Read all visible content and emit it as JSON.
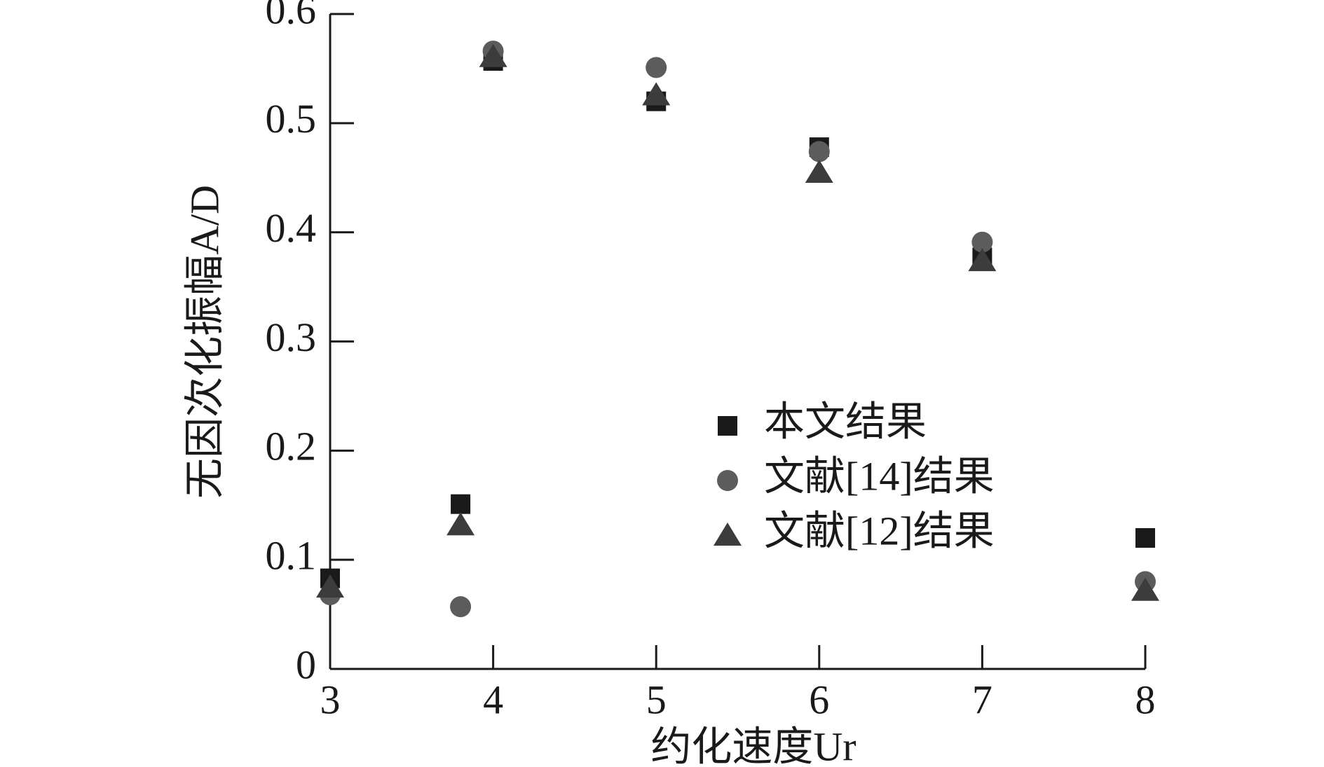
{
  "chart_data": {
    "type": "scatter",
    "xlabel": "约化速度Ur",
    "ylabel": "无因次化振幅A/D",
    "xlim": [
      3,
      8
    ],
    "ylim": [
      0,
      0.6
    ],
    "xticks": [
      3,
      4,
      5,
      6,
      7,
      8
    ],
    "yticks": [
      0,
      0.1,
      0.2,
      0.3,
      0.4,
      0.5,
      0.6
    ],
    "legend": "right",
    "series": [
      {
        "name": "本文结果",
        "color": "#1a1a1a",
        "marker": "square",
        "x": [
          3,
          3.8,
          4,
          5,
          6,
          7,
          8
        ],
        "values": [
          0.083,
          0.151,
          0.557,
          0.52,
          0.478,
          0.377,
          0.12
        ]
      },
      {
        "name": "文献[14]结果",
        "color": "#5c5c5c",
        "marker": "circle",
        "x": [
          3,
          3.8,
          4,
          5,
          6,
          7,
          8
        ],
        "values": [
          0.068,
          0.057,
          0.566,
          0.551,
          0.474,
          0.391,
          0.08
        ]
      },
      {
        "name": "文献[12]结果",
        "color": "#3c3c3c",
        "marker": "triangle",
        "x": [
          3,
          3.8,
          4,
          5,
          6,
          7,
          8
        ],
        "values": [
          0.075,
          0.132,
          0.561,
          0.526,
          0.455,
          0.374,
          0.072
        ]
      }
    ]
  }
}
